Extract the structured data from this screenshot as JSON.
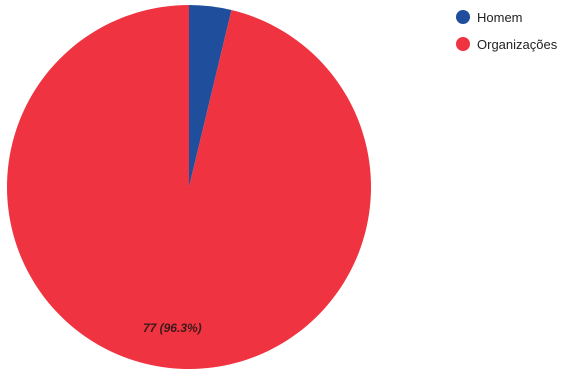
{
  "chart_data": {
    "type": "pie",
    "title": "",
    "slices": [
      {
        "name": "Homem",
        "value": 3,
        "color": "#1f4e9c",
        "label": ""
      },
      {
        "name": "Organizações",
        "value": 77,
        "color": "#ef3340",
        "label": "77 (96.3%)"
      }
    ],
    "start_angle_deg": 0,
    "direction": "clockwise",
    "legend": {
      "position": "top-right"
    }
  }
}
